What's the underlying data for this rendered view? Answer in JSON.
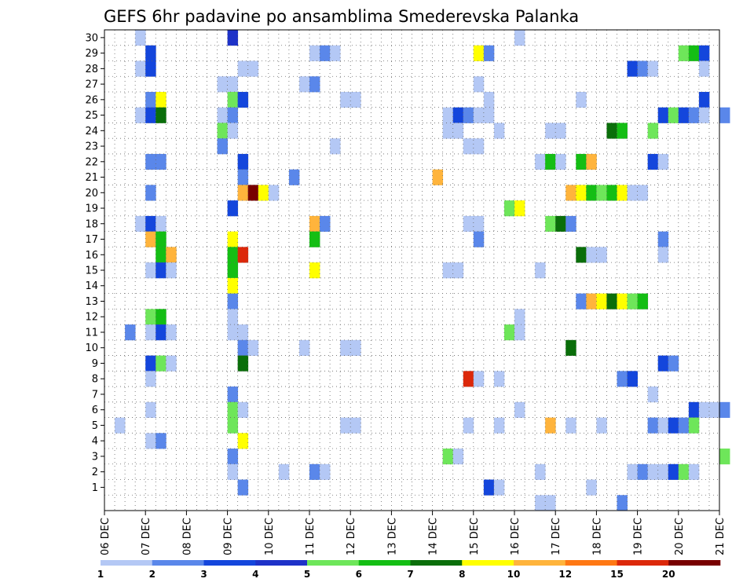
{
  "chart_data": {
    "type": "heatmap",
    "title": "GEFS 6hr padavine po ansamblima Smederevska Palanka",
    "xlabel": "",
    "ylabel": "",
    "x_tick_labels": [
      "06 DEC",
      "07 DEC",
      "08 DEC",
      "09 DEC",
      "10 DEC",
      "11 DEC",
      "12 DEC",
      "13 DEC",
      "14 DEC",
      "15 DEC",
      "16 DEC",
      "17 DEC",
      "18 DEC",
      "19 DEC",
      "20 DEC",
      "21 DEC"
    ],
    "y_tick_labels": [
      "1",
      "2",
      "3",
      "4",
      "5",
      "6",
      "7",
      "8",
      "9",
      "10",
      "11",
      "12",
      "13",
      "14",
      "15",
      "16",
      "17",
      "18",
      "19",
      "20",
      "21",
      "22",
      "23",
      "24",
      "25",
      "26",
      "27",
      "28",
      "29",
      "30"
    ],
    "x_range_steps": [
      0,
      60
    ],
    "steps_per_day": 4,
    "members": [
      1,
      30
    ],
    "grid": "dotted",
    "legend_placement": "bottom",
    "legend_levels": [
      "1",
      "2",
      "3",
      "4",
      "5",
      "6",
      "7",
      "8",
      "10",
      "12",
      "15",
      "20"
    ],
    "legend_colors": [
      "#b4c8f5",
      "#5a87ea",
      "#1446dc",
      "#1e32c8",
      "#6ee65a",
      "#14be14",
      "#0a6e0a",
      "#ffff00",
      "#ffb43c",
      "#ff7814",
      "#dc280a",
      "#780000"
    ],
    "cells": [
      [
        30,
        3,
        1
      ],
      [
        30,
        12,
        4
      ],
      [
        30,
        40,
        1
      ],
      [
        29,
        4,
        3
      ],
      [
        29,
        20,
        1
      ],
      [
        29,
        21,
        2
      ],
      [
        29,
        22,
        1
      ],
      [
        29,
        36,
        8
      ],
      [
        29,
        37,
        2
      ],
      [
        29,
        56,
        5
      ],
      [
        29,
        57,
        6
      ],
      [
        29,
        58,
        3
      ],
      [
        28,
        3,
        1
      ],
      [
        28,
        4,
        3
      ],
      [
        28,
        13,
        1
      ],
      [
        28,
        14,
        1
      ],
      [
        28,
        51,
        3
      ],
      [
        28,
        52,
        2
      ],
      [
        28,
        53,
        1
      ],
      [
        28,
        58,
        1
      ],
      [
        27,
        11,
        1
      ],
      [
        27,
        12,
        1
      ],
      [
        27,
        19,
        1
      ],
      [
        27,
        20,
        2
      ],
      [
        27,
        36,
        1
      ],
      [
        26,
        4,
        2
      ],
      [
        26,
        5,
        8
      ],
      [
        26,
        12,
        5
      ],
      [
        26,
        13,
        3
      ],
      [
        26,
        23,
        1
      ],
      [
        26,
        24,
        1
      ],
      [
        26,
        37,
        1
      ],
      [
        26,
        46,
        1
      ],
      [
        26,
        58,
        3
      ],
      [
        25,
        3,
        1
      ],
      [
        25,
        4,
        3
      ],
      [
        25,
        5,
        7
      ],
      [
        25,
        11,
        1
      ],
      [
        25,
        12,
        2
      ],
      [
        25,
        33,
        1
      ],
      [
        25,
        34,
        3
      ],
      [
        25,
        35,
        2
      ],
      [
        25,
        36,
        1
      ],
      [
        25,
        37,
        1
      ],
      [
        25,
        54,
        3
      ],
      [
        25,
        55,
        5
      ],
      [
        25,
        56,
        3
      ],
      [
        25,
        57,
        2
      ],
      [
        25,
        58,
        1
      ],
      [
        25,
        60,
        2
      ],
      [
        24,
        11,
        5
      ],
      [
        24,
        12,
        1
      ],
      [
        24,
        33,
        1
      ],
      [
        24,
        34,
        1
      ],
      [
        24,
        38,
        1
      ],
      [
        24,
        43,
        1
      ],
      [
        24,
        44,
        1
      ],
      [
        24,
        49,
        7
      ],
      [
        24,
        50,
        6
      ],
      [
        24,
        53,
        5
      ],
      [
        23,
        11,
        2
      ],
      [
        23,
        22,
        1
      ],
      [
        23,
        35,
        1
      ],
      [
        23,
        36,
        1
      ],
      [
        22,
        4,
        2
      ],
      [
        22,
        5,
        2
      ],
      [
        22,
        13,
        3
      ],
      [
        22,
        42,
        1
      ],
      [
        22,
        43,
        6
      ],
      [
        22,
        44,
        1
      ],
      [
        22,
        46,
        6
      ],
      [
        22,
        47,
        10
      ],
      [
        22,
        53,
        3
      ],
      [
        22,
        54,
        1
      ],
      [
        21,
        13,
        2
      ],
      [
        21,
        18,
        2
      ],
      [
        21,
        32,
        10
      ],
      [
        20,
        4,
        2
      ],
      [
        20,
        13,
        10
      ],
      [
        20,
        14,
        20
      ],
      [
        20,
        15,
        8
      ],
      [
        20,
        16,
        1
      ],
      [
        20,
        45,
        10
      ],
      [
        20,
        46,
        8
      ],
      [
        20,
        47,
        6
      ],
      [
        20,
        48,
        5
      ],
      [
        20,
        49,
        6
      ],
      [
        20,
        50,
        8
      ],
      [
        20,
        51,
        1
      ],
      [
        20,
        52,
        1
      ],
      [
        19,
        12,
        3
      ],
      [
        19,
        39,
        5
      ],
      [
        19,
        40,
        8
      ],
      [
        18,
        3,
        1
      ],
      [
        18,
        4,
        3
      ],
      [
        18,
        5,
        1
      ],
      [
        18,
        20,
        10
      ],
      [
        18,
        21,
        2
      ],
      [
        18,
        35,
        1
      ],
      [
        18,
        36,
        1
      ],
      [
        18,
        43,
        5
      ],
      [
        18,
        44,
        7
      ],
      [
        18,
        45,
        2
      ],
      [
        17,
        4,
        10
      ],
      [
        17,
        5,
        6
      ],
      [
        17,
        12,
        8
      ],
      [
        17,
        20,
        6
      ],
      [
        17,
        36,
        2
      ],
      [
        17,
        54,
        2
      ],
      [
        16,
        5,
        6
      ],
      [
        16,
        6,
        10
      ],
      [
        16,
        12,
        6
      ],
      [
        16,
        13,
        15
      ],
      [
        16,
        46,
        7
      ],
      [
        16,
        47,
        1
      ],
      [
        16,
        48,
        1
      ],
      [
        16,
        54,
        1
      ],
      [
        15,
        4,
        1
      ],
      [
        15,
        5,
        3
      ],
      [
        15,
        6,
        1
      ],
      [
        15,
        12,
        6
      ],
      [
        15,
        20,
        8
      ],
      [
        15,
        33,
        1
      ],
      [
        15,
        34,
        1
      ],
      [
        15,
        42,
        1
      ],
      [
        14,
        12,
        8
      ],
      [
        13,
        12,
        2
      ],
      [
        13,
        46,
        2
      ],
      [
        13,
        47,
        10
      ],
      [
        13,
        48,
        8
      ],
      [
        13,
        49,
        7
      ],
      [
        13,
        50,
        8
      ],
      [
        13,
        51,
        5
      ],
      [
        13,
        52,
        6
      ],
      [
        12,
        4,
        5
      ],
      [
        12,
        5,
        6
      ],
      [
        12,
        12,
        1
      ],
      [
        12,
        40,
        1
      ],
      [
        11,
        2,
        2
      ],
      [
        11,
        4,
        1
      ],
      [
        11,
        5,
        3
      ],
      [
        11,
        6,
        1
      ],
      [
        11,
        12,
        1
      ],
      [
        11,
        13,
        1
      ],
      [
        11,
        39,
        5
      ],
      [
        11,
        40,
        1
      ],
      [
        10,
        13,
        2
      ],
      [
        10,
        14,
        1
      ],
      [
        10,
        19,
        1
      ],
      [
        10,
        23,
        1
      ],
      [
        10,
        24,
        1
      ],
      [
        10,
        45,
        7
      ],
      [
        9,
        4,
        3
      ],
      [
        9,
        5,
        5
      ],
      [
        9,
        6,
        1
      ],
      [
        9,
        13,
        7
      ],
      [
        9,
        54,
        3
      ],
      [
        9,
        55,
        2
      ],
      [
        8,
        4,
        1
      ],
      [
        8,
        35,
        15
      ],
      [
        8,
        36,
        1
      ],
      [
        8,
        38,
        1
      ],
      [
        8,
        50,
        2
      ],
      [
        8,
        51,
        3
      ],
      [
        7,
        12,
        2
      ],
      [
        7,
        53,
        1
      ],
      [
        6,
        4,
        1
      ],
      [
        6,
        12,
        5
      ],
      [
        6,
        13,
        1
      ],
      [
        6,
        40,
        1
      ],
      [
        6,
        57,
        3
      ],
      [
        6,
        58,
        1
      ],
      [
        6,
        59,
        1
      ],
      [
        6,
        60,
        2
      ],
      [
        5,
        1,
        1
      ],
      [
        5,
        12,
        5
      ],
      [
        5,
        23,
        1
      ],
      [
        5,
        24,
        1
      ],
      [
        5,
        35,
        1
      ],
      [
        5,
        38,
        1
      ],
      [
        5,
        43,
        10
      ],
      [
        5,
        45,
        1
      ],
      [
        5,
        48,
        1
      ],
      [
        5,
        53,
        2
      ],
      [
        5,
        54,
        1
      ],
      [
        5,
        55,
        3
      ],
      [
        5,
        56,
        2
      ],
      [
        5,
        57,
        5
      ],
      [
        4,
        4,
        1
      ],
      [
        4,
        5,
        2
      ],
      [
        4,
        13,
        8
      ],
      [
        3,
        12,
        2
      ],
      [
        3,
        33,
        5
      ],
      [
        3,
        34,
        1
      ],
      [
        3,
        60,
        5
      ],
      [
        2,
        12,
        1
      ],
      [
        2,
        17,
        1
      ],
      [
        2,
        20,
        2
      ],
      [
        2,
        21,
        1
      ],
      [
        2,
        42,
        1
      ],
      [
        2,
        51,
        1
      ],
      [
        2,
        52,
        2
      ],
      [
        2,
        53,
        1
      ],
      [
        2,
        54,
        1
      ],
      [
        2,
        55,
        3
      ],
      [
        2,
        56,
        5
      ],
      [
        2,
        57,
        1
      ],
      [
        1,
        13,
        2
      ],
      [
        1,
        37,
        3
      ],
      [
        1,
        38,
        1
      ],
      [
        1,
        47,
        1
      ],
      [
        0,
        42,
        1
      ],
      [
        0,
        43,
        1
      ],
      [
        0,
        50,
        2
      ]
    ]
  }
}
